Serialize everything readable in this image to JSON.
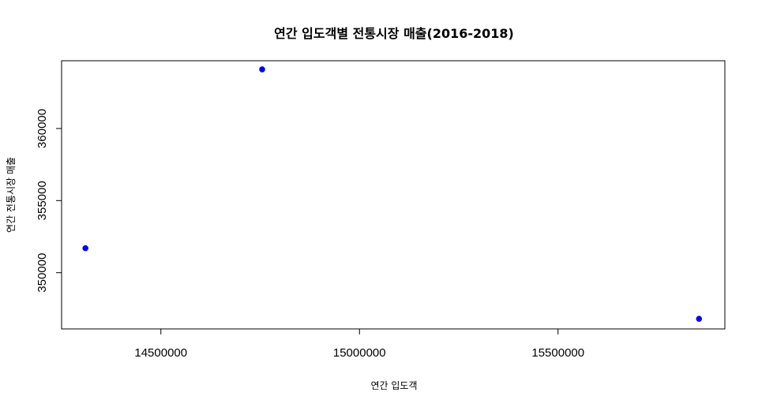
{
  "chart_data": {
    "type": "scatter",
    "title": "연간 입도객별 전통시장 매출(2016-2018)",
    "xlabel": "연간 입도객",
    "ylabel": "연간 전통시장 매출",
    "xlim": [
      14250000,
      15920000
    ],
    "ylim": [
      346100,
      364700
    ],
    "x_ticks": [
      14500000,
      15000000,
      15500000
    ],
    "y_ticks": [
      350000,
      355000,
      360000
    ],
    "x_tick_labels": [
      "14500000",
      "15000000",
      "15500000"
    ],
    "y_tick_labels": [
      "350000",
      "355000",
      "360000"
    ],
    "points": [
      {
        "x": 14310000,
        "y": 351700
      },
      {
        "x": 14755000,
        "y": 364100
      },
      {
        "x": 15855000,
        "y": 346800
      }
    ],
    "point_color": "#0000ff",
    "grid": false
  }
}
